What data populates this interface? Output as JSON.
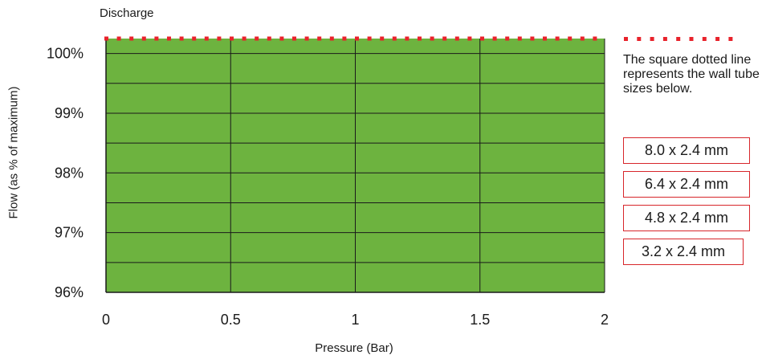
{
  "chart_data": {
    "type": "area",
    "title": "Discharge",
    "xlabel": "Pressure (Bar)",
    "ylabel": "Flow (as % of maximum)",
    "x_ticks": [
      0,
      0.5,
      1,
      1.5,
      2
    ],
    "x_tick_labels": [
      "0",
      "0.5",
      "1",
      "1.5",
      "2"
    ],
    "y_ticks": [
      96,
      97,
      98,
      99,
      100
    ],
    "y_tick_labels": [
      "96%",
      "97%",
      "98%",
      "99%",
      "100%"
    ],
    "xlim": [
      0,
      2
    ],
    "ylim": [
      96,
      100.25
    ],
    "grid": true,
    "series": [
      {
        "x": [
          0,
          2
        ],
        "y": [
          100.25,
          100.25
        ],
        "fill": "#6db33f",
        "line_color": "#e8222b",
        "line_style": "square-dotted"
      }
    ],
    "legend": {
      "text": "The square dotted line represents the wall tube sizes below.",
      "sizes": [
        "8.0 x 2.4 mm",
        "6.4 x 2.4 mm",
        "4.8 x 2.4 mm",
        "3.2 x 2.4 mm"
      ],
      "placement": "right"
    },
    "colors": {
      "fill": "#6db33f",
      "dots": "#e8222b",
      "box_border": "#d7262b"
    }
  }
}
